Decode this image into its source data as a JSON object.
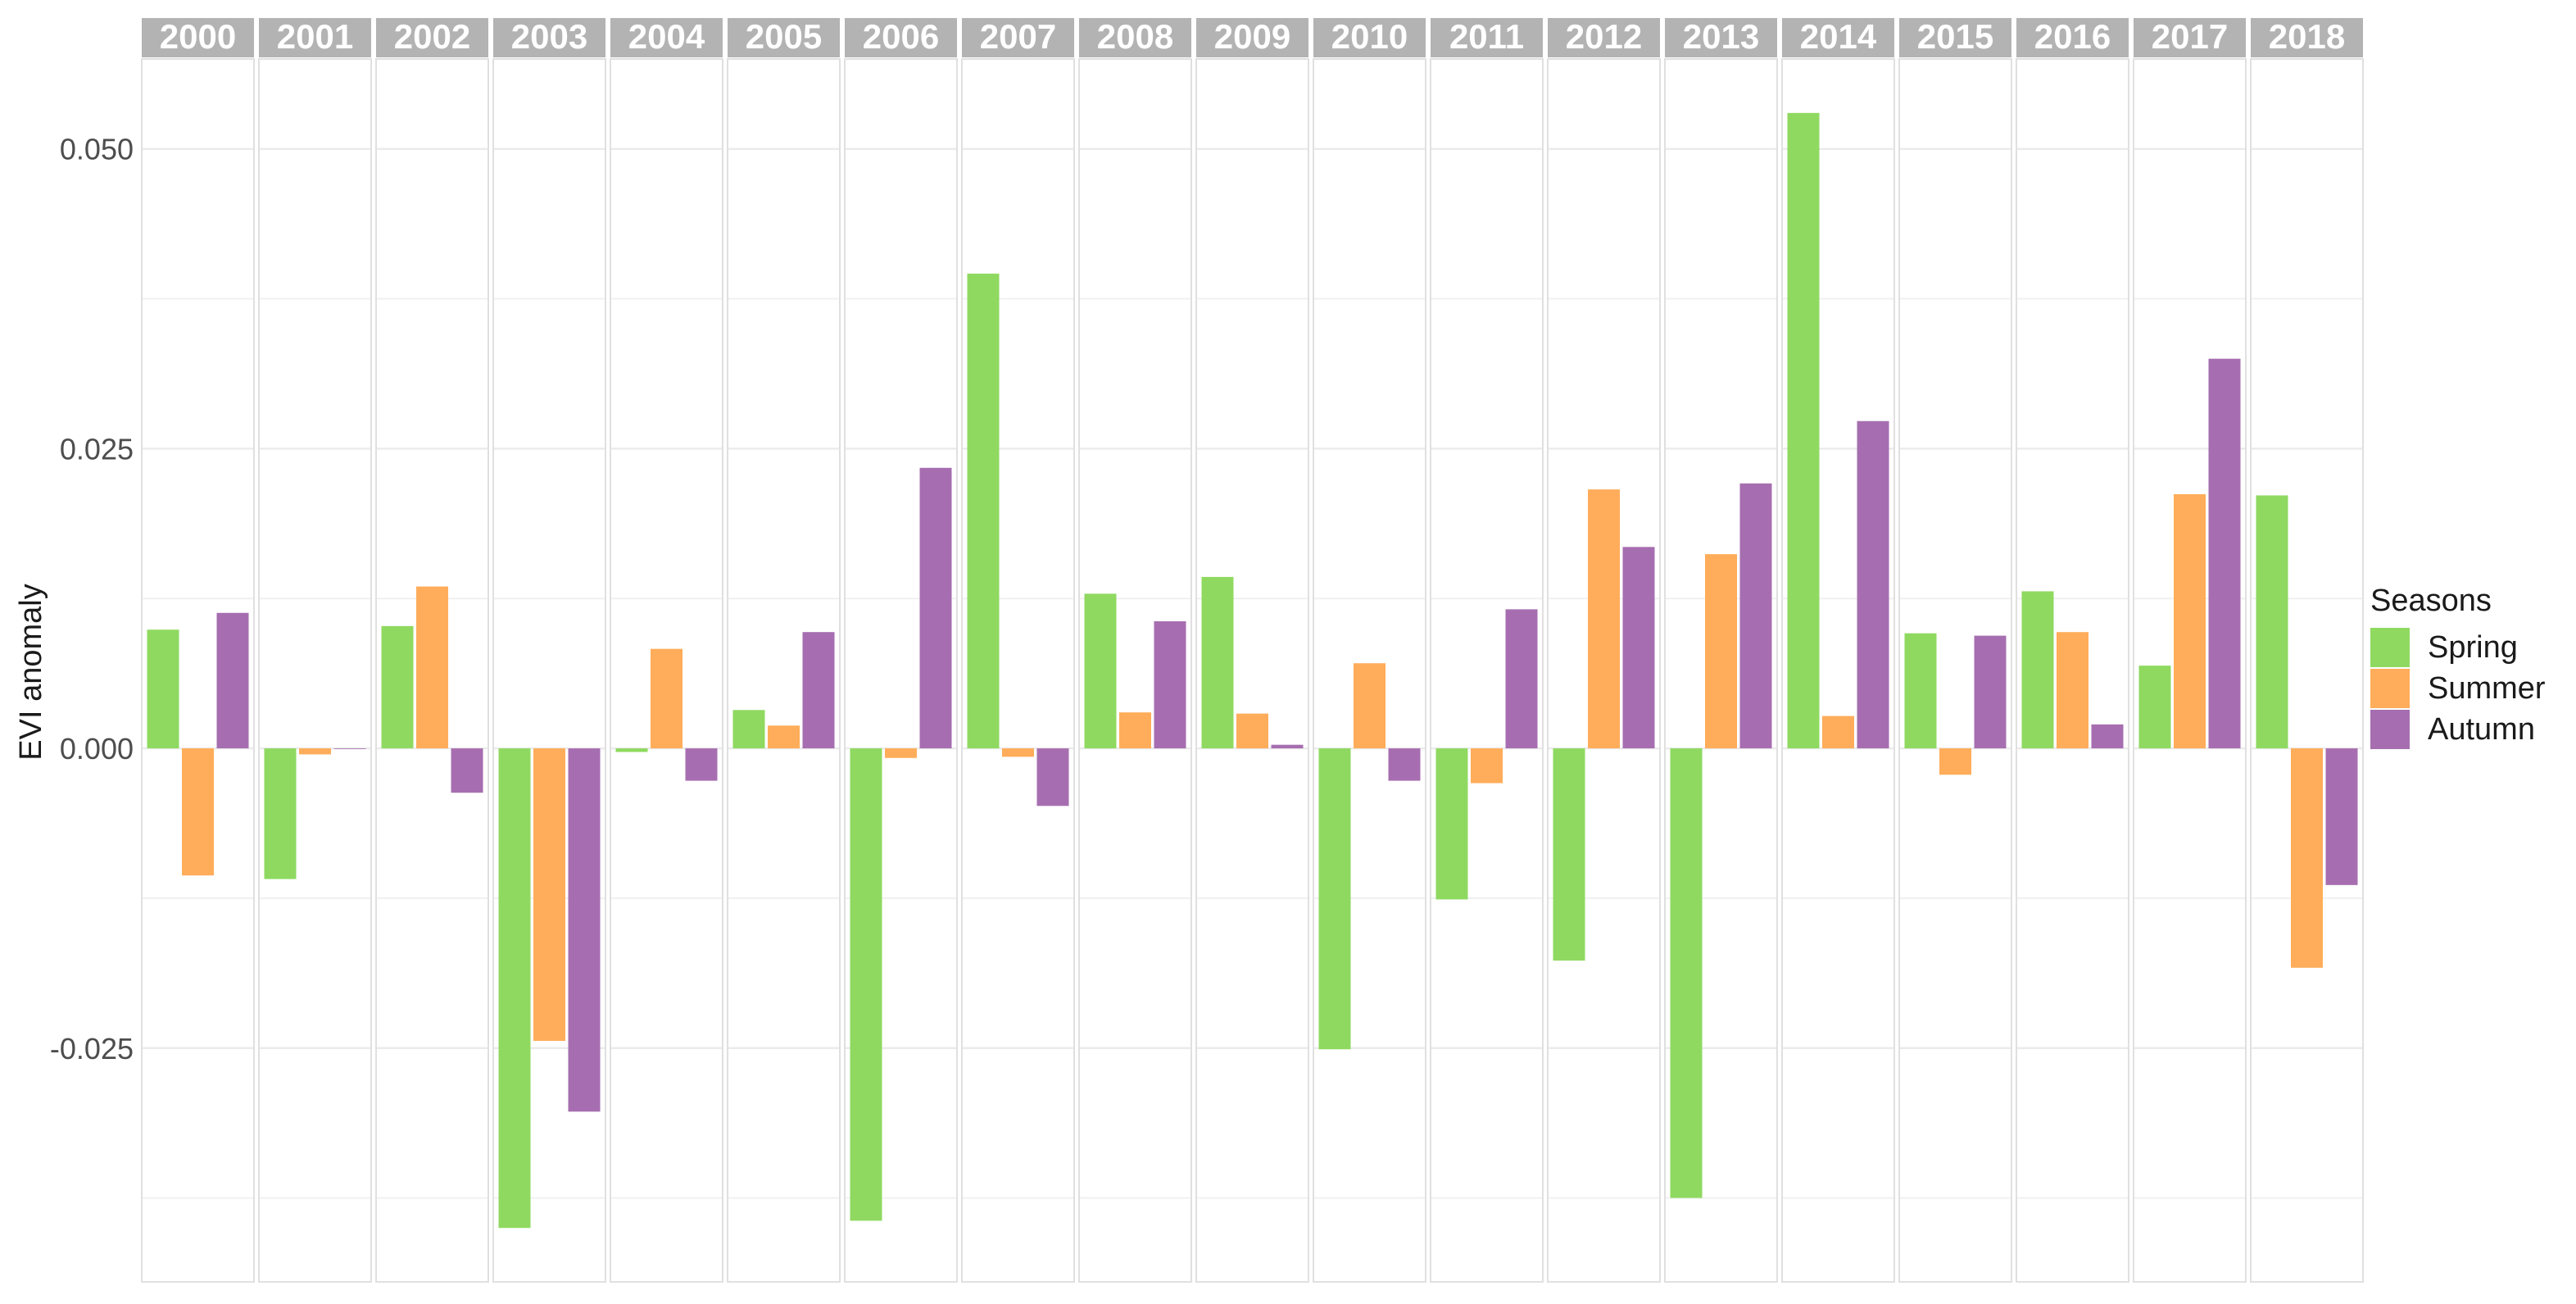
{
  "chart_data": {
    "type": "bar",
    "facet_by": "year",
    "ylabel": "EVI anomaly",
    "xlabel": "",
    "ylim": [
      -0.0445,
      0.0575
    ],
    "yticks": [
      -0.025,
      0.0,
      0.025,
      0.05
    ],
    "ytick_labels": [
      "-0.025",
      "0.000",
      "0.025",
      "0.050"
    ],
    "grid": true,
    "legend": {
      "title": "Seasons",
      "position": "right"
    },
    "categories": [
      "2000",
      "2001",
      "2002",
      "2003",
      "2004",
      "2005",
      "2006",
      "2007",
      "2008",
      "2009",
      "2010",
      "2011",
      "2012",
      "2013",
      "2014",
      "2015",
      "2016",
      "2017",
      "2018"
    ],
    "series": [
      {
        "name": "Spring",
        "color": "#8fd960",
        "values": [
          0.0099,
          -0.0109,
          0.0102,
          -0.04,
          -0.0003,
          0.0032,
          -0.0394,
          0.0396,
          0.0129,
          0.0143,
          -0.0251,
          -0.0126,
          -0.0177,
          -0.0375,
          0.053,
          0.0096,
          0.0131,
          0.0069,
          0.0211
        ]
      },
      {
        "name": "Summer",
        "color": "#ffad5a",
        "values": [
          -0.0106,
          -0.0005,
          0.0135,
          -0.0244,
          0.0083,
          0.0019,
          -0.0008,
          -0.0007,
          0.003,
          0.0029,
          0.0071,
          -0.0029,
          0.0216,
          0.0162,
          0.0027,
          -0.0022,
          0.0097,
          0.0212,
          -0.0183
        ]
      },
      {
        "name": "Autumn",
        "color": "#a66eb0",
        "values": [
          0.0113,
          -0.0,
          -0.0037,
          -0.0303,
          -0.0027,
          0.0097,
          0.0234,
          -0.0048,
          0.0106,
          0.0003,
          -0.0027,
          0.0116,
          0.0168,
          0.0221,
          0.0273,
          0.0094,
          0.002,
          0.0325,
          -0.0114
        ]
      }
    ]
  }
}
